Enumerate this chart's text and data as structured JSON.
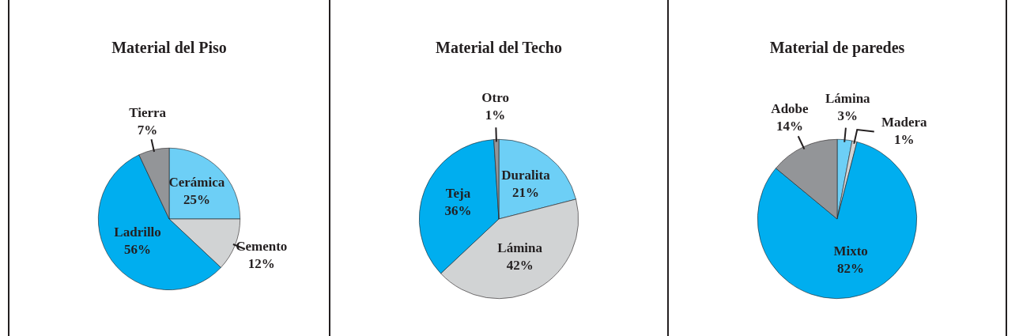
{
  "chart_data": [
    {
      "type": "pie",
      "title": "Material del Piso",
      "categories": [
        "Cerámica",
        "Cemento",
        "Ladrillo",
        "Tierra"
      ],
      "values": [
        25,
        12,
        56,
        7
      ],
      "colors": [
        "#6dcff6",
        "#d1d3d4",
        "#00aeef",
        "#939598"
      ],
      "value_labels": [
        "25%",
        "12%",
        "56%",
        "7%"
      ]
    },
    {
      "type": "pie",
      "title": "Material del Techo",
      "categories": [
        "Duralita",
        "Lámina",
        "Teja",
        "Otro"
      ],
      "values": [
        21,
        42,
        36,
        1
      ],
      "colors": [
        "#6dcff6",
        "#d1d3d4",
        "#00aeef",
        "#939598"
      ],
      "value_labels": [
        "21%",
        "42%",
        "36%",
        "1%"
      ]
    },
    {
      "type": "pie",
      "title": "Material de paredes",
      "categories": [
        "Lámina",
        "Madera",
        "Mixto",
        "Adobe"
      ],
      "values": [
        3,
        1,
        82,
        14
      ],
      "colors": [
        "#6dcff6",
        "#d1d3d4",
        "#00aeef",
        "#939598"
      ],
      "value_labels": [
        "3%",
        "1%",
        "82%",
        "14%"
      ]
    }
  ]
}
